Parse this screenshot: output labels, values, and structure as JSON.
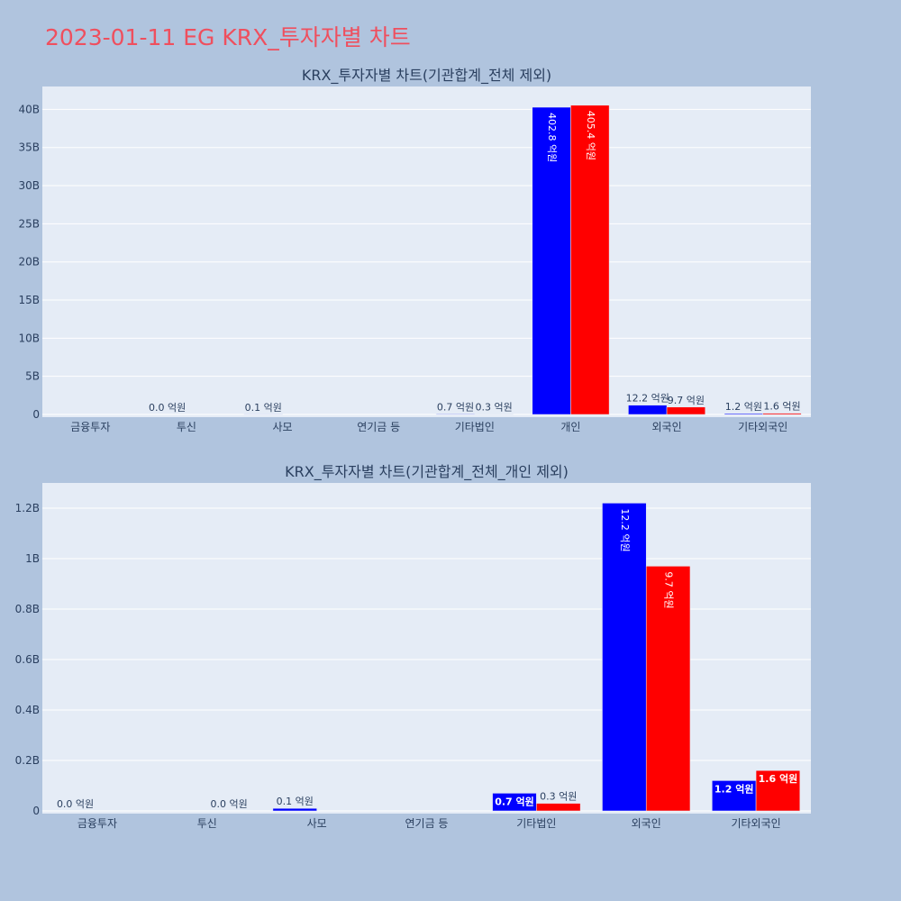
{
  "page": {
    "title": "2023-01-11 EG KRX_투자자별 차트"
  },
  "colors": {
    "buy": "#0000ff",
    "sell": "#ff0000",
    "plot_bg": "#e5ecf6",
    "page_bg": "#b0c4de",
    "title": "#ef4f5e"
  },
  "chart_data": [
    {
      "type": "bar",
      "title": "KRX_투자자별 차트(기관합계_전체 제외)",
      "categories": [
        "금융투자",
        "투신",
        "사모",
        "연기금 등",
        "기타법인",
        "개인",
        "외국인",
        "기타외국인"
      ],
      "series": [
        {
          "values": [
            0,
            0,
            10000000,
            0,
            70000000,
            40280000000,
            1220000000,
            120000000
          ],
          "labels": [
            "",
            "0.0 억원",
            "0.1 억원",
            "",
            "0.7 억원",
            "402.8 억원",
            "12.2 억원",
            "1.2 억원"
          ]
        },
        {
          "values": [
            0,
            0,
            0,
            0,
            30000000,
            40540000000,
            970000000,
            160000000
          ],
          "labels": [
            "",
            "",
            "",
            "",
            "0.3 억원",
            "405.4 억원",
            "9.7 억원",
            "1.6 억원"
          ]
        }
      ],
      "ylim": [
        0,
        43000000000
      ],
      "yticks": [
        0,
        5000000000,
        10000000000,
        15000000000,
        20000000000,
        25000000000,
        30000000000,
        35000000000,
        40000000000
      ],
      "ytick_labels": [
        "0",
        "5B",
        "10B",
        "15B",
        "20B",
        "25B",
        "30B",
        "35B",
        "40B"
      ],
      "grid": true
    },
    {
      "type": "bar",
      "title": "KRX_투자자별 차트(기관합계_전체_개인 제외)",
      "categories": [
        "금융투자",
        "투신",
        "사모",
        "연기금 등",
        "기타법인",
        "외국인",
        "기타외국인"
      ],
      "series": [
        {
          "values": [
            0,
            0,
            10000000,
            0,
            70000000,
            1220000000,
            120000000
          ],
          "labels": [
            "0.0 억원",
            "",
            "0.1 억원",
            "",
            "0.7 억원",
            "12.2 억원",
            "1.2 억원"
          ]
        },
        {
          "values": [
            0,
            0,
            0,
            0,
            30000000,
            970000000,
            160000000
          ],
          "labels": [
            "",
            "0.0 억원",
            "",
            "",
            "0.3 억원",
            "9.7 억원",
            "1.6 억원"
          ]
        }
      ],
      "ylim": [
        0,
        1300000000
      ],
      "yticks": [
        0,
        200000000,
        400000000,
        600000000,
        800000000,
        1000000000,
        1200000000
      ],
      "ytick_labels": [
        "0",
        "0.2B",
        "0.4B",
        "0.6B",
        "0.8B",
        "1B",
        "1.2B"
      ],
      "grid": true
    }
  ]
}
